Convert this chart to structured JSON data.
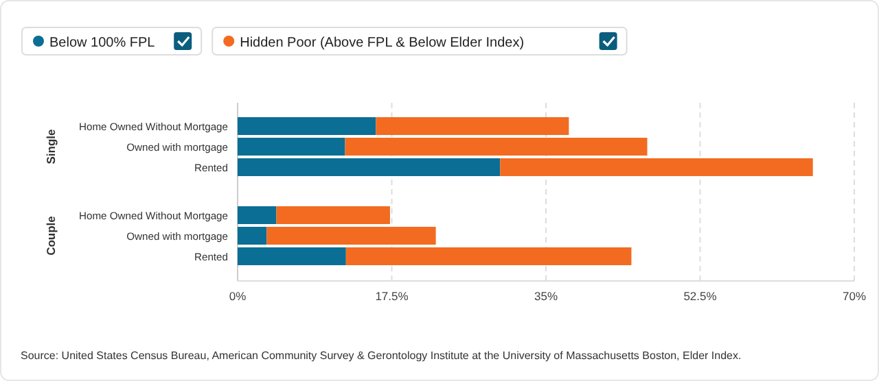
{
  "chart_data": {
    "type": "bar",
    "orientation": "horizontal",
    "stacked": true,
    "categories": [
      "Home Owned Without Mortgage",
      "Owned with mortgage",
      "Rented",
      "Home Owned Without Mortgage",
      "Owned with mortgage",
      "Rented"
    ],
    "series": [
      {
        "name": "Below 100% FPL",
        "color": "#0b6e94",
        "values": [
          15.7,
          12.2,
          29.8,
          4.4,
          3.3,
          12.3
        ]
      },
      {
        "name": "Hidden Poor (Above FPL & Below Elder Index)",
        "color": "#f26b21",
        "values": [
          21.9,
          34.3,
          35.5,
          12.9,
          19.2,
          32.4
        ]
      }
    ],
    "xlim": [
      0,
      70
    ],
    "xticks": [
      {
        "value": 0,
        "label": "0%"
      },
      {
        "value": 17.5,
        "label": "17.5%"
      },
      {
        "value": 35,
        "label": "35%"
      },
      {
        "value": 52.5,
        "label": "52.5%"
      },
      {
        "value": 70,
        "label": "70%"
      }
    ],
    "grid": "x",
    "legend": "top left",
    "annotations": [
      "Single",
      "Couple",
      "Source: United States Census Bureau, American Community Survey & Gerontology Institute at the University of Massachusetts Boston, Elder Index."
    ]
  }
}
